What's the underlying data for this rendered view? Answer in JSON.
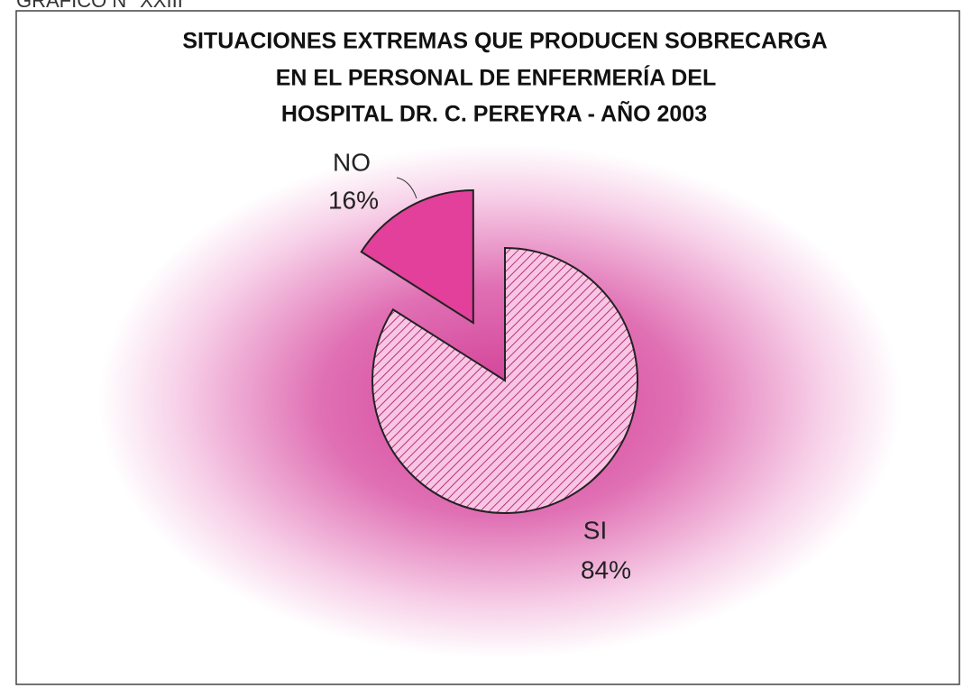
{
  "header_note": "GRAFICO N° XXIII",
  "chart_data": {
    "type": "pie",
    "title": [
      "SITUACIONES EXTREMAS QUE PRODUCEN SOBRECARGA",
      "EN EL PERSONAL DE ENFERMERÍA   DEL",
      "HOSPITAL DR. C. PEREYRA - AÑO 2003"
    ],
    "categories": [
      "SI",
      "NO"
    ],
    "values": [
      84,
      16
    ],
    "value_labels": [
      "84%",
      "16%"
    ],
    "colors": [
      "#f6b4da",
      "#e2409a"
    ]
  }
}
